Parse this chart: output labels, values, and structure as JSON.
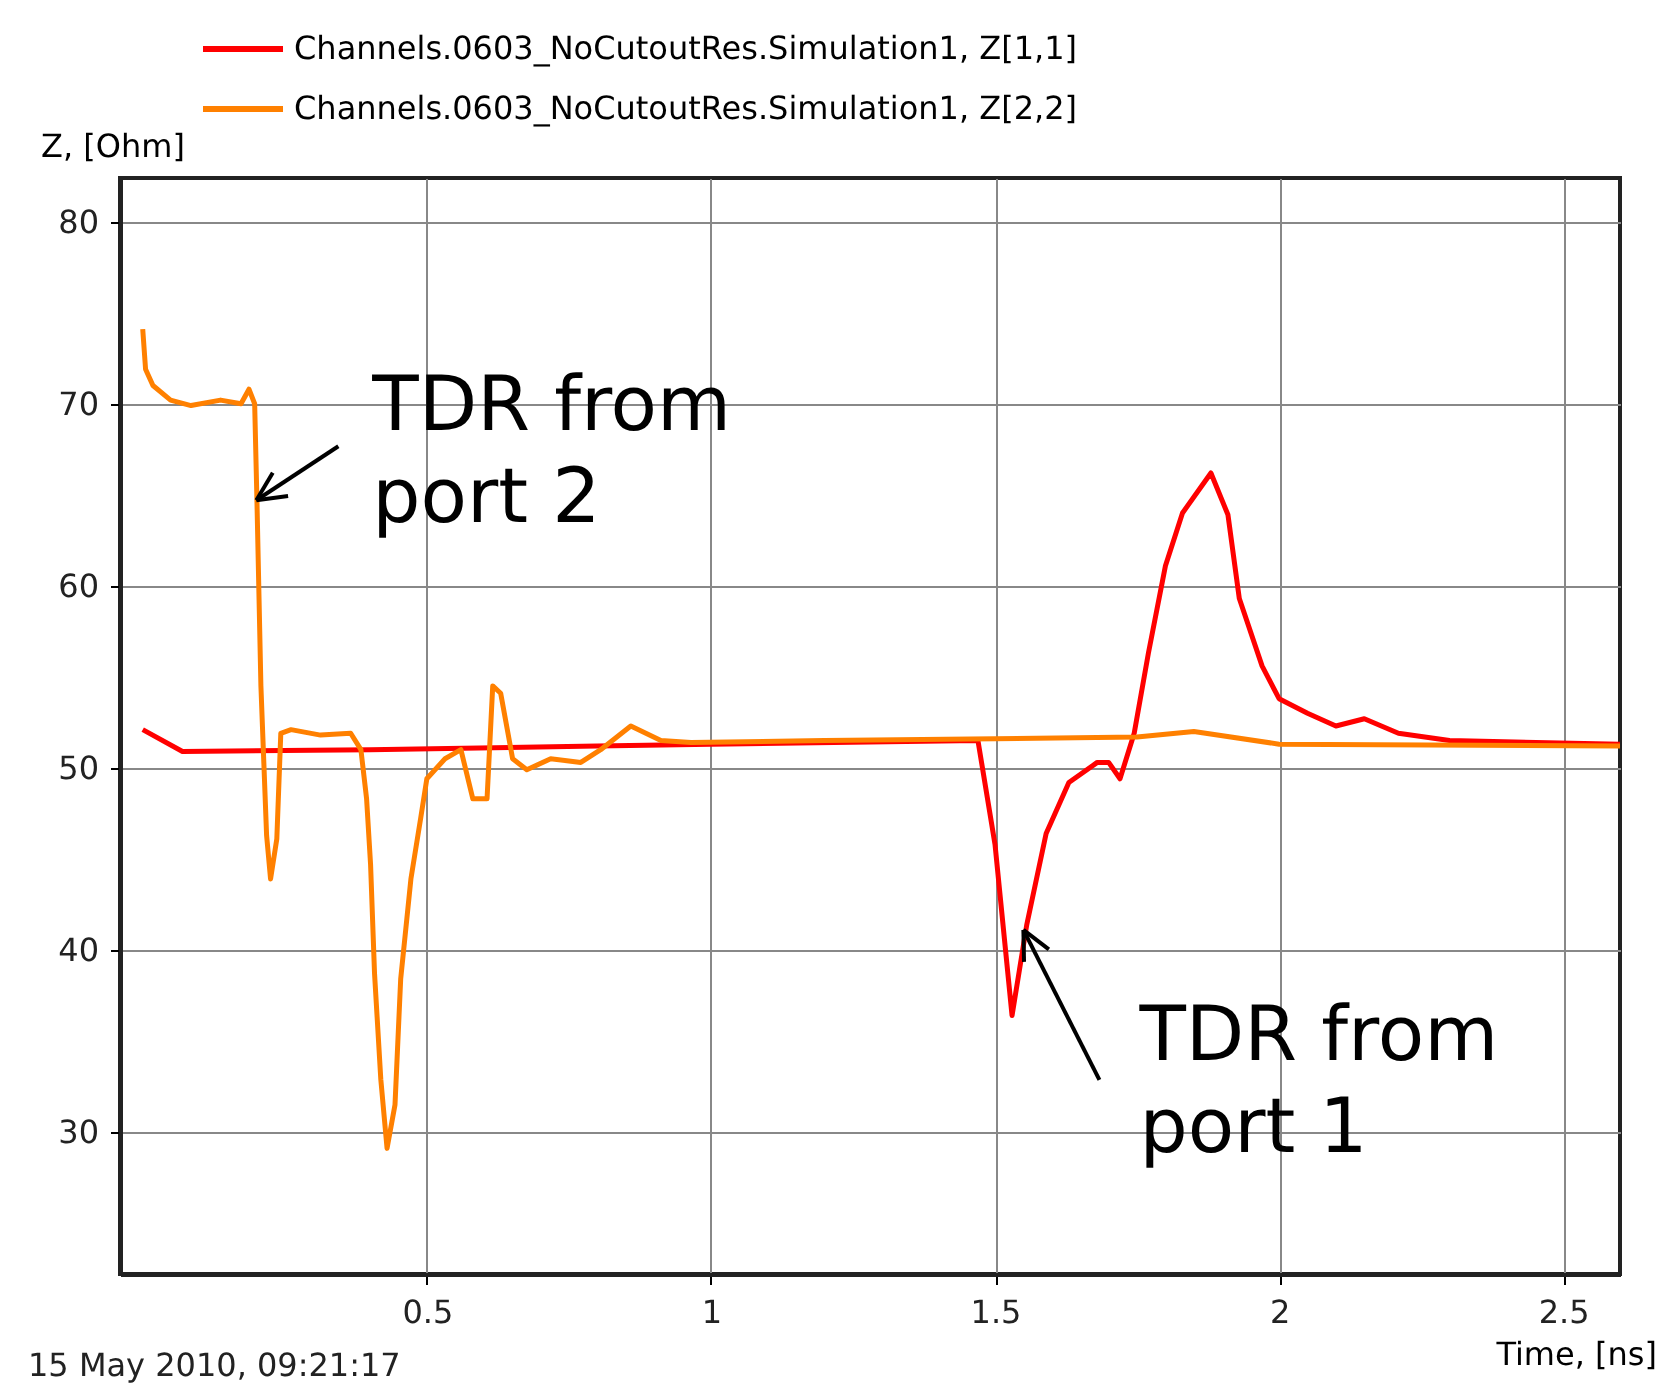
{
  "chart_data": {
    "type": "line",
    "xlabel": "Time, [ns]",
    "ylabel": "Z, [Ohm]",
    "xlim": [
      -0.04,
      2.6
    ],
    "ylim": [
      22.2,
      82.4
    ],
    "xticks": [
      0.5,
      1,
      1.5,
      2,
      2.5
    ],
    "yticks": [
      30,
      40,
      50,
      60,
      70,
      80
    ],
    "grid": true,
    "legend": "top",
    "marker": "none",
    "line_style": "solid",
    "series": [
      {
        "name": "Channels.0603_NoCutoutRes.Simulation1, Z[1,1]",
        "color": "#ff0000",
        "x": [
          0,
          0.07,
          0.4,
          0.8,
          1.0,
          1.47,
          1.5,
          1.53,
          1.556,
          1.59,
          1.63,
          1.68,
          1.7,
          1.72,
          1.745,
          1.77,
          1.8,
          1.83,
          1.88,
          1.91,
          1.93,
          1.97,
          2.0,
          2.05,
          2.1,
          2.15,
          2.21,
          2.3,
          2.6
        ],
        "values": [
          52.1,
          50.9,
          51.0,
          51.2,
          51.3,
          51.5,
          45.8,
          36.4,
          41.4,
          46.4,
          49.2,
          50.3,
          50.3,
          49.4,
          51.9,
          56.3,
          61.1,
          64.0,
          66.2,
          63.9,
          59.3,
          55.6,
          53.8,
          53.0,
          52.3,
          52.7,
          51.9,
          51.5,
          51.3
        ]
      },
      {
        "name": "Channels.0603_NoCutoutRes.Simulation1, Z[2,2]",
        "color": "#ff8000",
        "x": [
          0,
          0.005,
          0.018,
          0.049,
          0.085,
          0.137,
          0.173,
          0.187,
          0.197,
          0.201,
          0.208,
          0.218,
          0.225,
          0.236,
          0.243,
          0.261,
          0.313,
          0.366,
          0.384,
          0.394,
          0.401,
          0.408,
          0.419,
          0.43,
          0.444,
          0.454,
          0.472,
          0.489,
          0.5,
          0.532,
          0.56,
          0.581,
          0.606,
          0.616,
          0.63,
          0.651,
          0.676,
          0.718,
          0.771,
          0.806,
          0.859,
          0.912,
          0.965,
          1.2,
          1.5,
          1.75,
          1.85,
          2.0,
          2.6
        ],
        "values": [
          74.1,
          71.9,
          71.0,
          70.2,
          69.9,
          70.2,
          70.0,
          70.8,
          70.0,
          64.7,
          54.5,
          46.3,
          43.9,
          46.1,
          51.9,
          52.1,
          51.8,
          51.9,
          51.0,
          48.3,
          44.7,
          38.7,
          32.9,
          29.1,
          31.5,
          38.4,
          43.9,
          47.2,
          49.4,
          50.5,
          51.0,
          48.3,
          48.3,
          54.5,
          54.1,
          50.5,
          49.9,
          50.5,
          50.3,
          51.0,
          52.3,
          51.5,
          51.4,
          51.5,
          51.6,
          51.7,
          52.0,
          51.3,
          51.2
        ]
      }
    ],
    "annotations": [
      {
        "text": "TDR from port 2",
        "x": 0.2,
        "y": 64.7
      },
      {
        "text": "TDR from port 1",
        "x": 1.55,
        "y": 41.1
      },
      "15 May 2010, 09:21:17"
    ]
  }
}
